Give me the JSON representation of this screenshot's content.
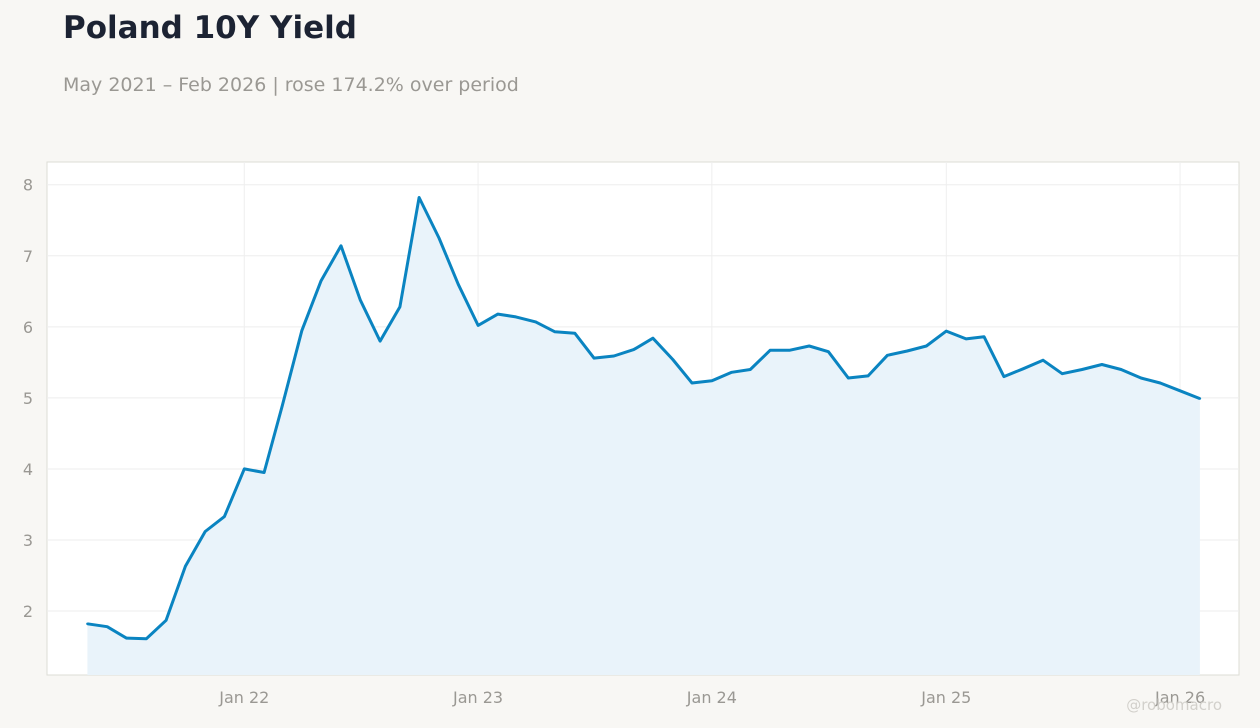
{
  "header": {
    "title": "Poland 10Y Yield",
    "subtitle": "May 2021 – Feb 2026 | rose 174.2% over period"
  },
  "watermark": "@robomacro",
  "colors": {
    "line": "#0a84c1",
    "area": "#e9f3fa",
    "background": "#f8f7f4",
    "plot_background": "#ffffff",
    "grid": "#eeeeee",
    "title": "#1c2333",
    "muted_text": "#9a9893"
  },
  "chart_data": {
    "type": "area",
    "title": "Poland 10Y Yield",
    "subtitle": "May 2021 – Feb 2026 | rose 174.2% over period",
    "xlabel": "",
    "ylabel": "",
    "grid": true,
    "x_ticks": [
      "Jan 22",
      "Jan 23",
      "Jan 24",
      "Jan 25",
      "Jan 26"
    ],
    "y_ticks": [
      2,
      3,
      4,
      5,
      6,
      7,
      8
    ],
    "xlim": [
      "2021-02-27",
      "2026-04-03"
    ],
    "ylim": [
      1.1,
      8.32
    ],
    "series": [
      {
        "x": [
          "2021-05",
          "2021-06",
          "2021-07",
          "2021-08",
          "2021-09",
          "2021-10",
          "2021-11",
          "2021-12",
          "2022-01",
          "2022-02",
          "2022-03",
          "2022-04",
          "2022-05",
          "2022-06",
          "2022-07",
          "2022-08",
          "2022-09",
          "2022-10",
          "2022-11",
          "2022-12",
          "2023-01",
          "2023-02",
          "2023-03",
          "2023-04",
          "2023-05",
          "2023-06",
          "2023-07",
          "2023-08",
          "2023-09",
          "2023-10",
          "2023-11",
          "2023-12",
          "2024-01",
          "2024-02",
          "2024-03",
          "2024-04",
          "2024-05",
          "2024-06",
          "2024-07",
          "2024-08",
          "2024-09",
          "2024-10",
          "2024-11",
          "2024-12",
          "2025-01",
          "2025-02",
          "2025-03",
          "2025-04",
          "2025-05",
          "2025-06",
          "2025-07",
          "2025-08",
          "2025-09",
          "2025-10",
          "2025-11",
          "2025-12",
          "2026-01",
          "2026-02"
        ],
        "values": [
          1.82,
          1.78,
          1.62,
          1.61,
          1.87,
          2.63,
          3.12,
          3.33,
          4.0,
          3.95,
          4.88,
          5.95,
          6.65,
          7.14,
          6.38,
          5.8,
          6.28,
          7.82,
          7.25,
          6.6,
          6.02,
          6.18,
          6.14,
          6.07,
          5.93,
          5.91,
          5.56,
          5.59,
          5.68,
          5.84,
          5.54,
          5.21,
          5.24,
          5.36,
          5.4,
          5.67,
          5.67,
          5.73,
          5.65,
          5.28,
          5.31,
          5.6,
          5.66,
          5.73,
          5.94,
          5.83,
          5.86,
          5.3,
          5.41,
          5.53,
          5.34,
          5.4,
          5.47,
          5.4,
          5.28,
          5.21,
          5.1,
          4.99
        ]
      }
    ]
  }
}
